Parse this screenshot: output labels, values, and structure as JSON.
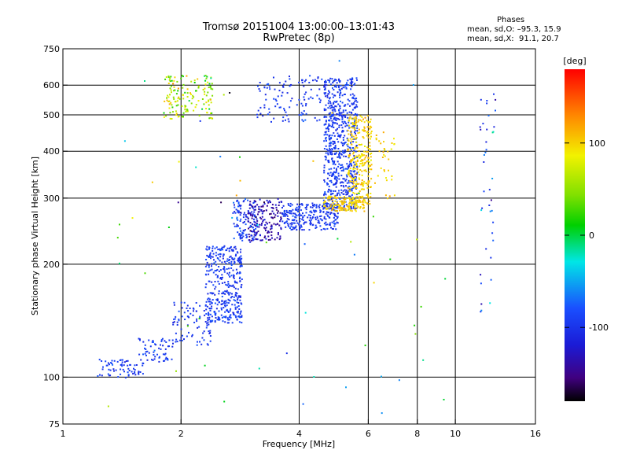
{
  "title_line1": "Tromsø 20151004 13:00:00–13:01:43",
  "title_line2": "RwPretec (8p)",
  "phase_box": {
    "heading": "Phases",
    "o_line": "mean, sd,O: –95.3, 15.9",
    "x_line": "mean, sd,X:  91.1, 20.7"
  },
  "chart_data": {
    "type": "scatter",
    "title": "Tromsø 20151004 13:00:00–13:01:43",
    "subtitle": "RwPretec (8p)",
    "xlabel": "Frequency [MHz]",
    "ylabel": "Stationary phase Virtual Height [km]",
    "xscale": "log",
    "yscale": "log",
    "xlim": [
      1,
      16
    ],
    "ylim": [
      75,
      750
    ],
    "x_ticks": [
      1,
      2,
      4,
      6,
      8,
      10,
      16
    ],
    "y_ticks": [
      75,
      100,
      200,
      300,
      400,
      500,
      600,
      750
    ],
    "x_grid": [
      2,
      4,
      6,
      8,
      10
    ],
    "y_grid": [
      100,
      200,
      300,
      400,
      500,
      600
    ],
    "colorbar": {
      "label": "[deg]",
      "range": [
        -180,
        180
      ],
      "ticks": [
        100,
        0,
        -100
      ]
    },
    "clusters": [
      {
        "fmin": 1.22,
        "fmax": 1.6,
        "hmin": 100,
        "hmax": 112,
        "phase": -95,
        "spread": 20,
        "n": 70
      },
      {
        "fmin": 1.55,
        "fmax": 1.9,
        "hmin": 110,
        "hmax": 128,
        "phase": -95,
        "spread": 20,
        "n": 60
      },
      {
        "fmin": 1.9,
        "fmax": 2.4,
        "hmin": 122,
        "hmax": 160,
        "phase": -95,
        "spread": 20,
        "n": 90
      },
      {
        "fmin": 2.3,
        "fmax": 2.85,
        "hmin": 140,
        "hmax": 225,
        "phase": -95,
        "spread": 20,
        "n": 380
      },
      {
        "fmin": 2.7,
        "fmax": 3.1,
        "hmin": 230,
        "hmax": 300,
        "phase": -95,
        "spread": 25,
        "n": 120
      },
      {
        "fmin": 2.95,
        "fmax": 3.6,
        "hmin": 232,
        "hmax": 300,
        "phase": -135,
        "spread": 25,
        "n": 160
      },
      {
        "fmin": 3.6,
        "fmax": 5.0,
        "hmin": 248,
        "hmax": 292,
        "phase": -95,
        "spread": 20,
        "n": 260
      },
      {
        "fmin": 4.6,
        "fmax": 5.6,
        "hmin": 280,
        "hmax": 630,
        "phase": -95,
        "spread": 20,
        "n": 700
      },
      {
        "fmin": 4.6,
        "fmax": 5.9,
        "hmin": 278,
        "hmax": 305,
        "phase": 100,
        "spread": 15,
        "n": 140
      },
      {
        "fmin": 5.3,
        "fmax": 6.1,
        "hmin": 290,
        "hmax": 500,
        "phase": 100,
        "spread": 20,
        "n": 280
      },
      {
        "fmin": 3.1,
        "fmax": 4.6,
        "hmin": 480,
        "hmax": 640,
        "phase": -95,
        "spread": 20,
        "n": 110
      },
      {
        "fmin": 1.8,
        "fmax": 2.4,
        "hmin": 490,
        "hmax": 640,
        "phase": 60,
        "spread": 60,
        "n": 150
      },
      {
        "fmin": 6.0,
        "fmax": 7.0,
        "hmin": 300,
        "hmax": 460,
        "phase": 100,
        "spread": 20,
        "n": 40
      },
      {
        "fmin": 11.5,
        "fmax": 12.6,
        "hmin": 150,
        "hmax": 600,
        "phase": -90,
        "spread": 60,
        "n": 40
      },
      {
        "fmin": 1.3,
        "fmax": 9.5,
        "hmin": 80,
        "hmax": 700,
        "phase": 0,
        "spread": 140,
        "n": 60
      }
    ]
  }
}
